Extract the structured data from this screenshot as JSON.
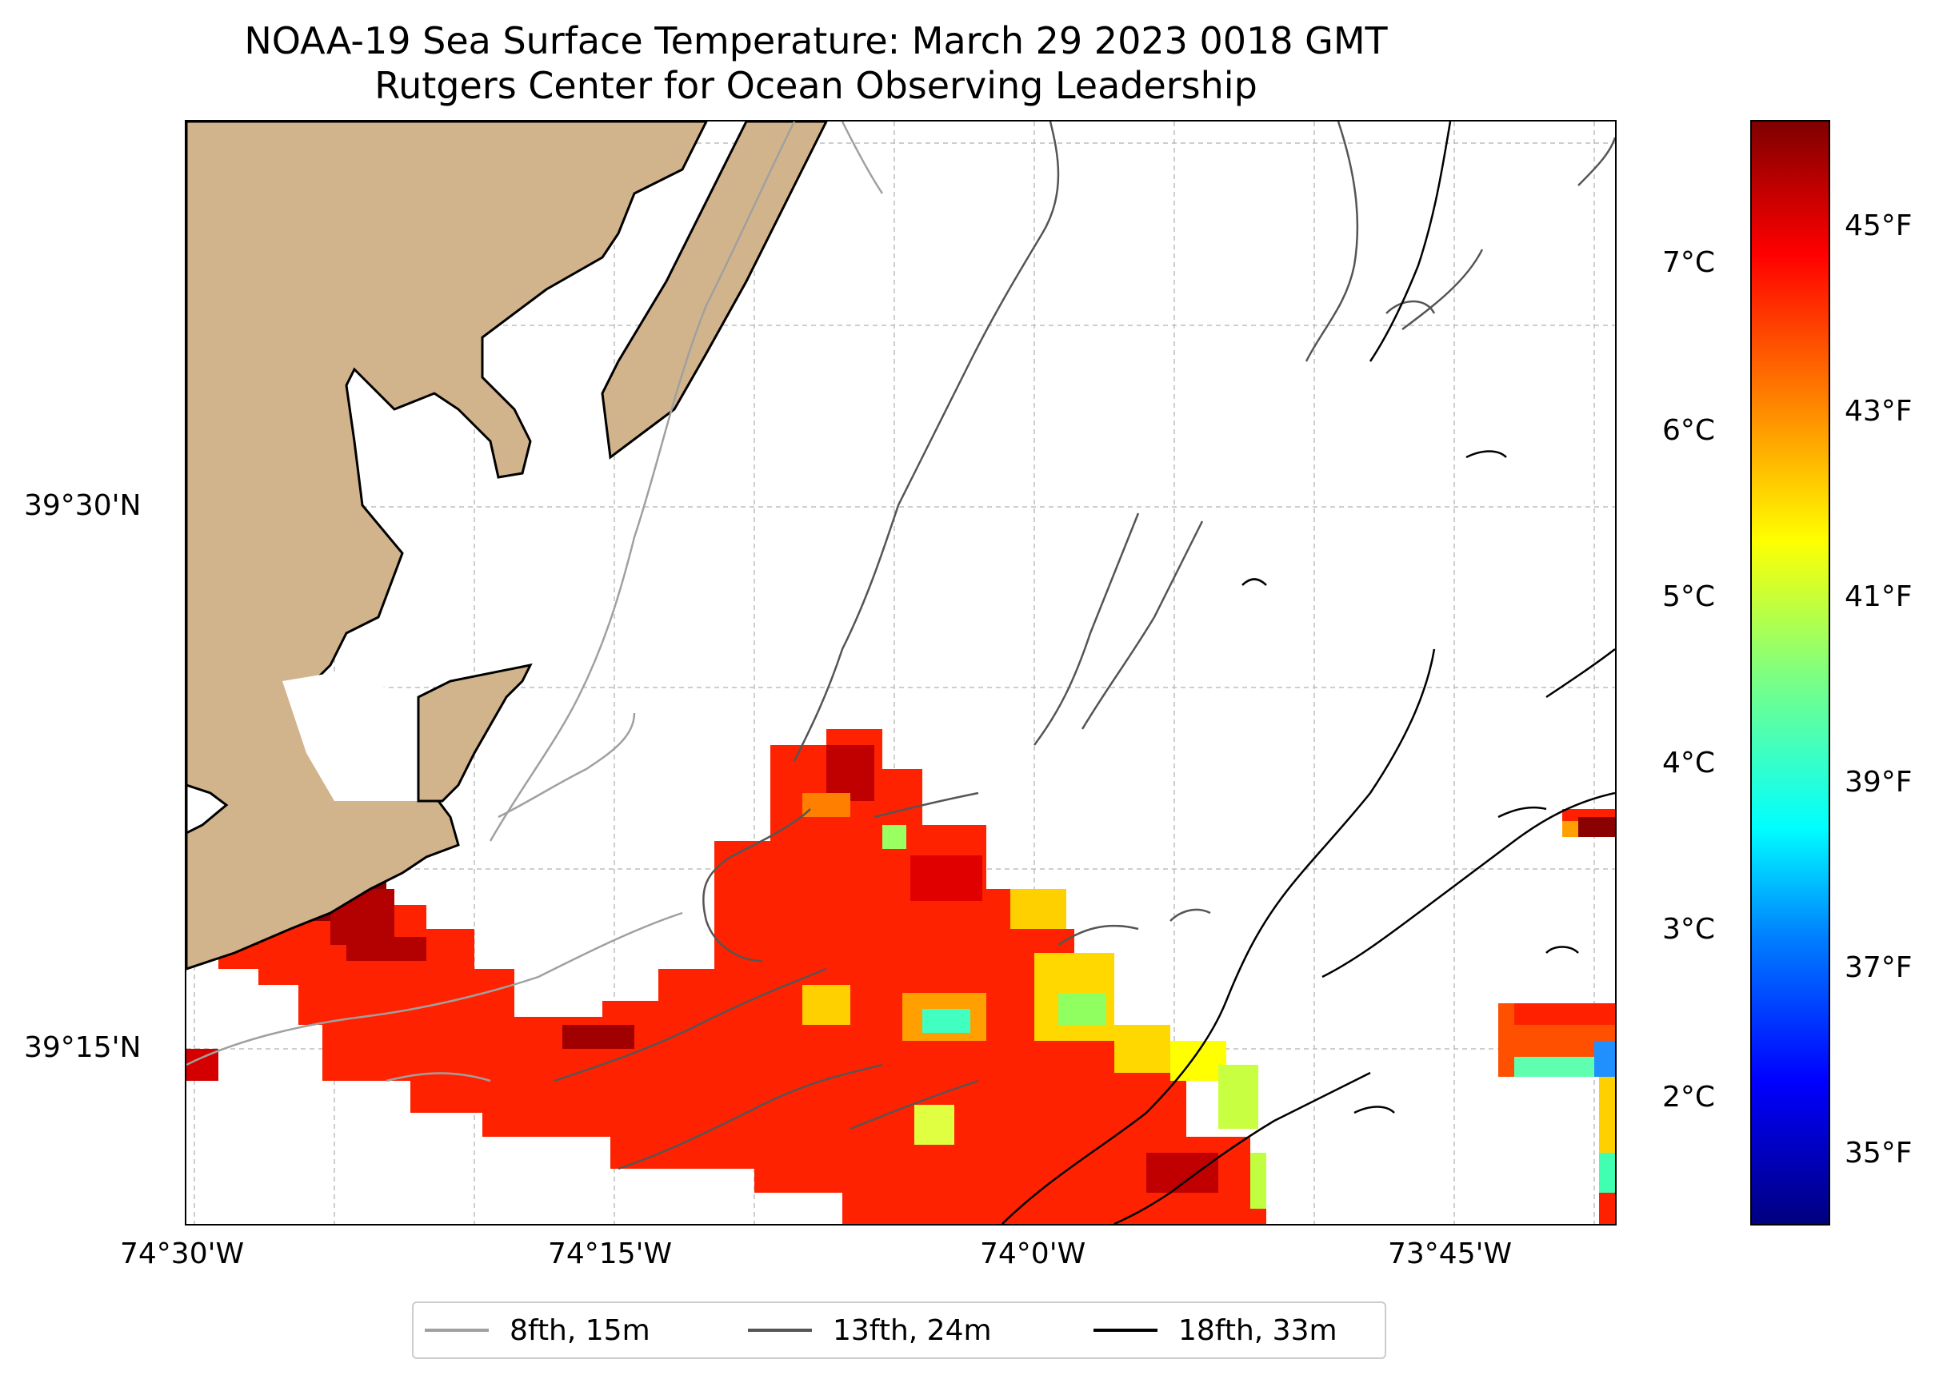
{
  "title": {
    "line1": "NOAA-19 Sea Surface Temperature: March 29 2023 0018 GMT",
    "line2": "Rutgers Center for Ocean Observing Leadership"
  },
  "axes": {
    "x_ticks": [
      "74°30'W",
      "74°15'W",
      "74°0'W",
      "73°45'W"
    ],
    "y_ticks": [
      "39°30'N",
      "39°15'N"
    ]
  },
  "colorbar": {
    "celsius_ticks": [
      "7°C",
      "6°C",
      "5°C",
      "4°C",
      "3°C",
      "2°C"
    ],
    "fahrenheit_ticks": [
      "45°F",
      "43°F",
      "41°F",
      "39°F",
      "37°F",
      "35°F"
    ],
    "colormap": "jet"
  },
  "legend": {
    "items": [
      {
        "label": "8fth, 15m",
        "color": "#a0a0a0"
      },
      {
        "label": "13fth, 24m",
        "color": "#555555"
      },
      {
        "label": "18fth, 33m",
        "color": "#000000"
      }
    ]
  },
  "colors": {
    "land": "#d2b48c",
    "sst_dominant": "#ff2000",
    "sst_warm": "#8b0000",
    "sst_cool": "#7fff7f"
  }
}
